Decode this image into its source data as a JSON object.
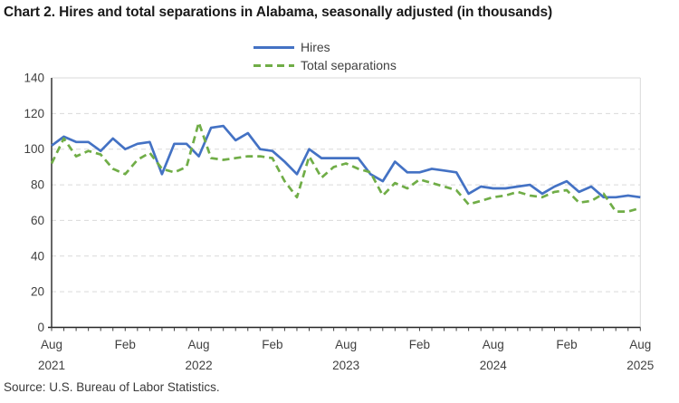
{
  "title": "Chart 2. Hires and total separations in Alabama, seasonally adjusted (in thousands)",
  "source": "Source: U.S. Bureau of Labor Statistics.",
  "legend": {
    "items": [
      {
        "label": "Hires",
        "color": "#4472c4",
        "style": "solid"
      },
      {
        "label": "Total separations",
        "color": "#70ad47",
        "style": "dashed"
      }
    ]
  },
  "colors": {
    "hires_line": "#4472c4",
    "separations_line": "#70ad47",
    "gridline": "#d9d9d9",
    "axis": "#262626",
    "tick_label": "#404040",
    "title_text": "#1a1a1a"
  },
  "chart_data": {
    "type": "line",
    "title": "Chart 2. Hires and total separations in Alabama, seasonally adjusted (in thousands)",
    "x_unit": "month",
    "x_start": "Aug 2021",
    "x_end": "Aug 2025",
    "n_points": 49,
    "ylim": [
      0,
      140
    ],
    "y_ticks": [
      0,
      20,
      40,
      60,
      80,
      100,
      120,
      140
    ],
    "grid": "horizontal-dashed",
    "legend_position": "top-center",
    "x_ticks": [
      {
        "pos": 0,
        "label": "Aug",
        "year": "2021"
      },
      {
        "pos": 6,
        "label": "Feb",
        "year": ""
      },
      {
        "pos": 12,
        "label": "Aug",
        "year": "2022"
      },
      {
        "pos": 18,
        "label": "Feb",
        "year": ""
      },
      {
        "pos": 24,
        "label": "Aug",
        "year": "2023"
      },
      {
        "pos": 30,
        "label": "Feb",
        "year": ""
      },
      {
        "pos": 36,
        "label": "Aug",
        "year": "2024"
      },
      {
        "pos": 42,
        "label": "Feb",
        "year": ""
      },
      {
        "pos": 48,
        "label": "Aug",
        "year": "2025"
      }
    ],
    "series": [
      {
        "name": "Hires",
        "color": "#4472c4",
        "dash": "solid",
        "values": [
          102,
          107,
          104,
          104,
          99,
          106,
          100,
          103,
          104,
          86,
          103,
          103,
          96,
          112,
          113,
          105,
          109,
          100,
          99,
          93,
          86,
          100,
          95,
          95,
          95,
          95,
          86,
          82,
          93,
          87,
          87,
          89,
          88,
          87,
          75,
          79,
          78,
          78,
          79,
          80,
          75,
          79,
          82,
          76,
          79,
          73,
          73,
          74,
          73
        ]
      },
      {
        "name": "Total separations",
        "color": "#70ad47",
        "dash": "dashed",
        "values": [
          92,
          106,
          96,
          99,
          97,
          89,
          86,
          94,
          98,
          89,
          87,
          90,
          115,
          95,
          94,
          95,
          96,
          96,
          95,
          82,
          73,
          96,
          84,
          90,
          92,
          89,
          87,
          74,
          81,
          78,
          83,
          81,
          79,
          77,
          69,
          71,
          73,
          74,
          76,
          74,
          73,
          76,
          77,
          70,
          71,
          75,
          65,
          65,
          67
        ]
      }
    ]
  }
}
